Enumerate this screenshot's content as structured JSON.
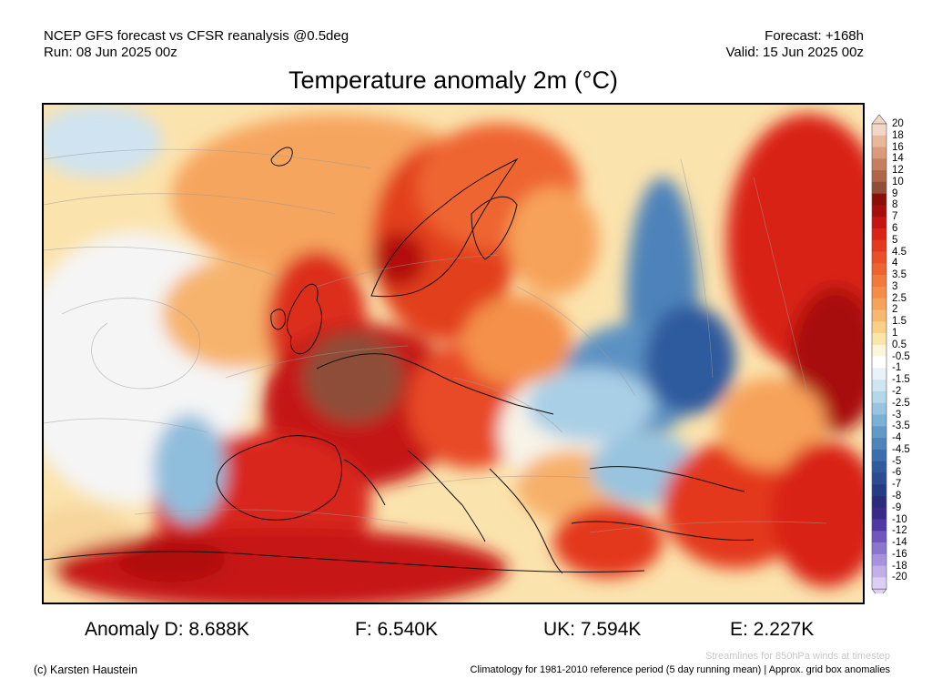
{
  "header": {
    "model_line": "NCEP GFS forecast vs CFSR reanalysis @0.5deg",
    "run_line": "Run: 08 Jun 2025 00z",
    "forecast_line": "Forecast: +168h",
    "valid_line": "Valid: 15 Jun 2025 00z"
  },
  "title": "Temperature anomaly 2m (°C)",
  "colorbar": {
    "labels": [
      "20",
      "18",
      "16",
      "14",
      "12",
      "10",
      "9",
      "8",
      "7",
      "6",
      "5",
      "4.5",
      "4",
      "3.5",
      "3",
      "2.5",
      "2",
      "1.5",
      "1",
      "0.5",
      "-0.5",
      "-1",
      "-1.5",
      "-2",
      "-2.5",
      "-3",
      "-3.5",
      "-4",
      "-4.5",
      "-5",
      "-6",
      "-7",
      "-8",
      "-9",
      "-10",
      "-12",
      "-14",
      "-16",
      "-18",
      "-20"
    ],
    "colors": [
      "#f3d6c4",
      "#e9b89c",
      "#d99b7b",
      "#c47e60",
      "#ae6549",
      "#8e4e37",
      "#8a0f0a",
      "#a80d0d",
      "#c61414",
      "#d92318",
      "#e3391f",
      "#ea5028",
      "#ee6431",
      "#f2783b",
      "#f58c48",
      "#f7a25a",
      "#f8b86f",
      "#fad089",
      "#fbe5a8",
      "#fbf5d9",
      "#ffffff",
      "#e8f2f9",
      "#cfe6f2",
      "#b5d7ea",
      "#98c4df",
      "#7cb0d4",
      "#6399c7",
      "#4d83ba",
      "#3c6dac",
      "#2f5a9e",
      "#294c93",
      "#233c86",
      "#2a2b7a",
      "#392a8a",
      "#4f38a3",
      "#6f57bd",
      "#8b76cf",
      "#a692dd",
      "#c2b0ea",
      "#dccff5"
    ]
  },
  "stats": {
    "d": "Anomaly D: 8.688K",
    "f": "F: 6.540K",
    "uk": "UK: 7.594K",
    "e": "E: 2.227K"
  },
  "footer": {
    "streamlines_note": "Streamlines for 850hPa winds at timestep",
    "credit": "(c) Karsten Haustein",
    "climatology_note": "Climatology for 1981-2010 reference period (5 day running mean) | Approx. grid box anomalies"
  }
}
